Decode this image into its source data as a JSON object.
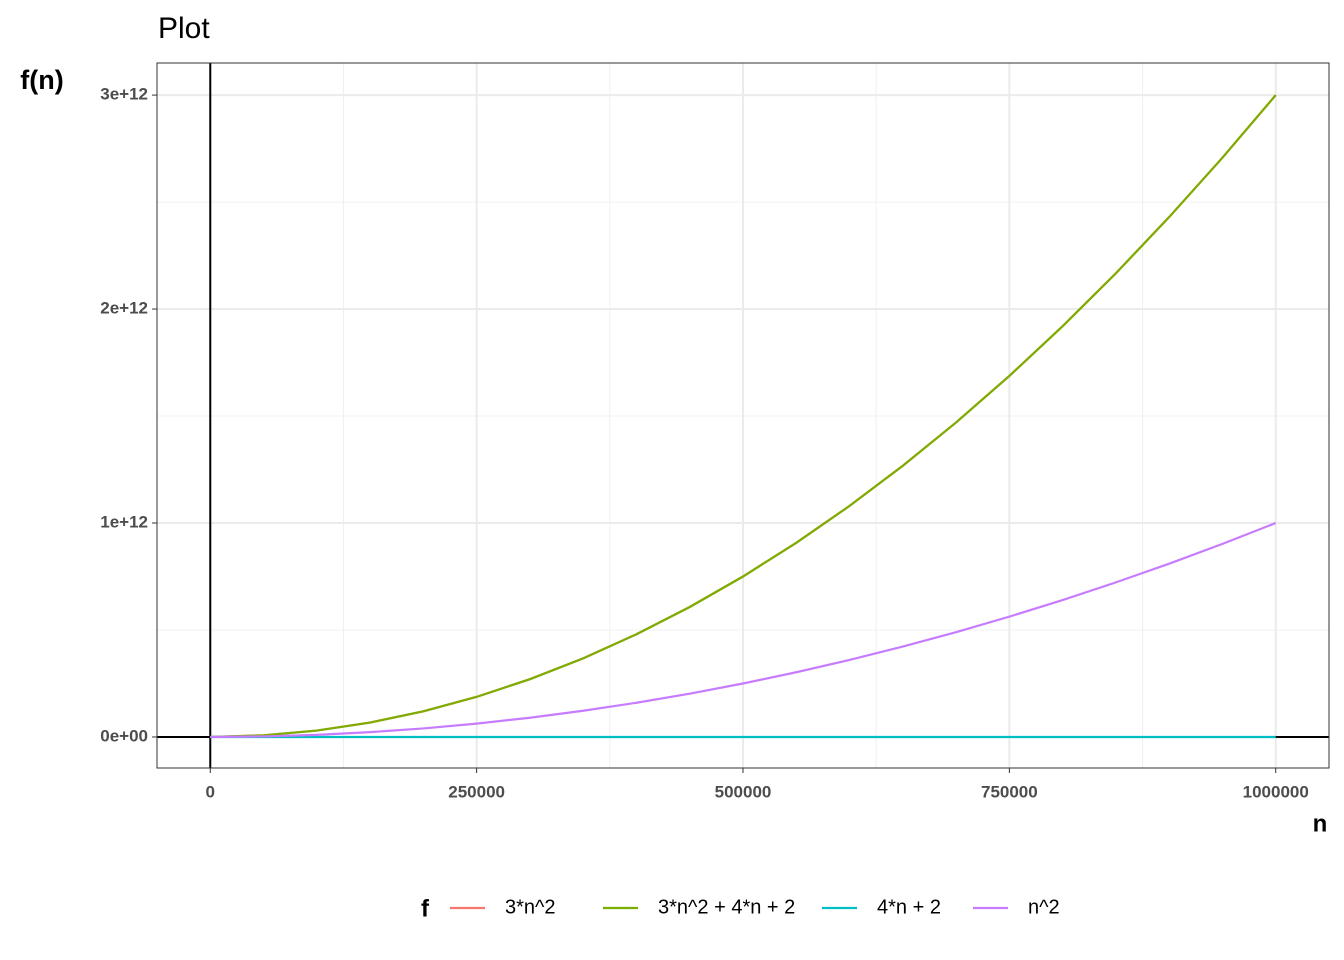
{
  "chart_data": {
    "type": "line",
    "title": "Plot",
    "x_label": "n",
    "y_label": "f(n)",
    "legend_title": "f",
    "x": [
      0,
      50000,
      100000,
      150000,
      200000,
      250000,
      300000,
      350000,
      400000,
      450000,
      500000,
      550000,
      600000,
      650000,
      700000,
      750000,
      800000,
      850000,
      900000,
      950000,
      1000000
    ],
    "series": [
      {
        "name": "3*n^2",
        "color": "#f8766d",
        "values": [
          0,
          7500000000,
          30000000000,
          67500000000,
          120000000000,
          187500000000,
          270000000000,
          367500000000,
          480000000000,
          607500000000,
          750000000000,
          907500000000,
          1080000000000,
          1267500000000,
          1470000000000,
          1687500000000,
          1920000000000,
          2167500000000,
          2430000000000,
          2707500000000,
          3000000000000
        ]
      },
      {
        "name": "3*n^2 + 4*n + 2",
        "color": "#7cae00",
        "values": [
          2,
          7500200002,
          30000400002,
          67500600002,
          120000800002,
          187501000002,
          270001200002,
          367501400002,
          480001600002,
          607501800002,
          750002000002,
          907502200002,
          1080002400002,
          1267502600002,
          1470002800002,
          1687503000002,
          1920003200002,
          2167503400002,
          2430003600002,
          2707503800002,
          3000004000002
        ]
      },
      {
        "name": "4*n + 2",
        "color": "#00bfc4",
        "values": [
          2,
          200002,
          400002,
          600002,
          800002,
          1000002,
          1200002,
          1400002,
          1600002,
          1800002,
          2000002,
          2200002,
          2400002,
          2600002,
          2800002,
          3000002,
          3200002,
          3400002,
          3600002,
          3800002,
          4000002
        ]
      },
      {
        "name": "n^2",
        "color": "#c77cff",
        "values": [
          0,
          2500000000,
          10000000000,
          22500000000,
          40000000000,
          62500000000,
          90000000000,
          122500000000,
          160000000000,
          202500000000,
          250000000000,
          302500000000,
          360000000000,
          422500000000,
          490000000000,
          562500000000,
          640000000000,
          722500000000,
          810000000000,
          902500000000,
          1000000000000
        ]
      }
    ],
    "xlim": [
      -50000,
      1050000
    ],
    "ylim": [
      -145000000000,
      3150000000000
    ],
    "xticks": [
      0,
      250000,
      500000,
      750000,
      1000000
    ],
    "yticks": [
      {
        "value": 0,
        "label": "0e+00"
      },
      {
        "value": 1000000000000,
        "label": "1e+12"
      },
      {
        "value": 2000000000000,
        "label": "2e+12"
      },
      {
        "value": 3000000000000,
        "label": "3e+12"
      }
    ],
    "grid": true,
    "legend_position": "bottom"
  }
}
